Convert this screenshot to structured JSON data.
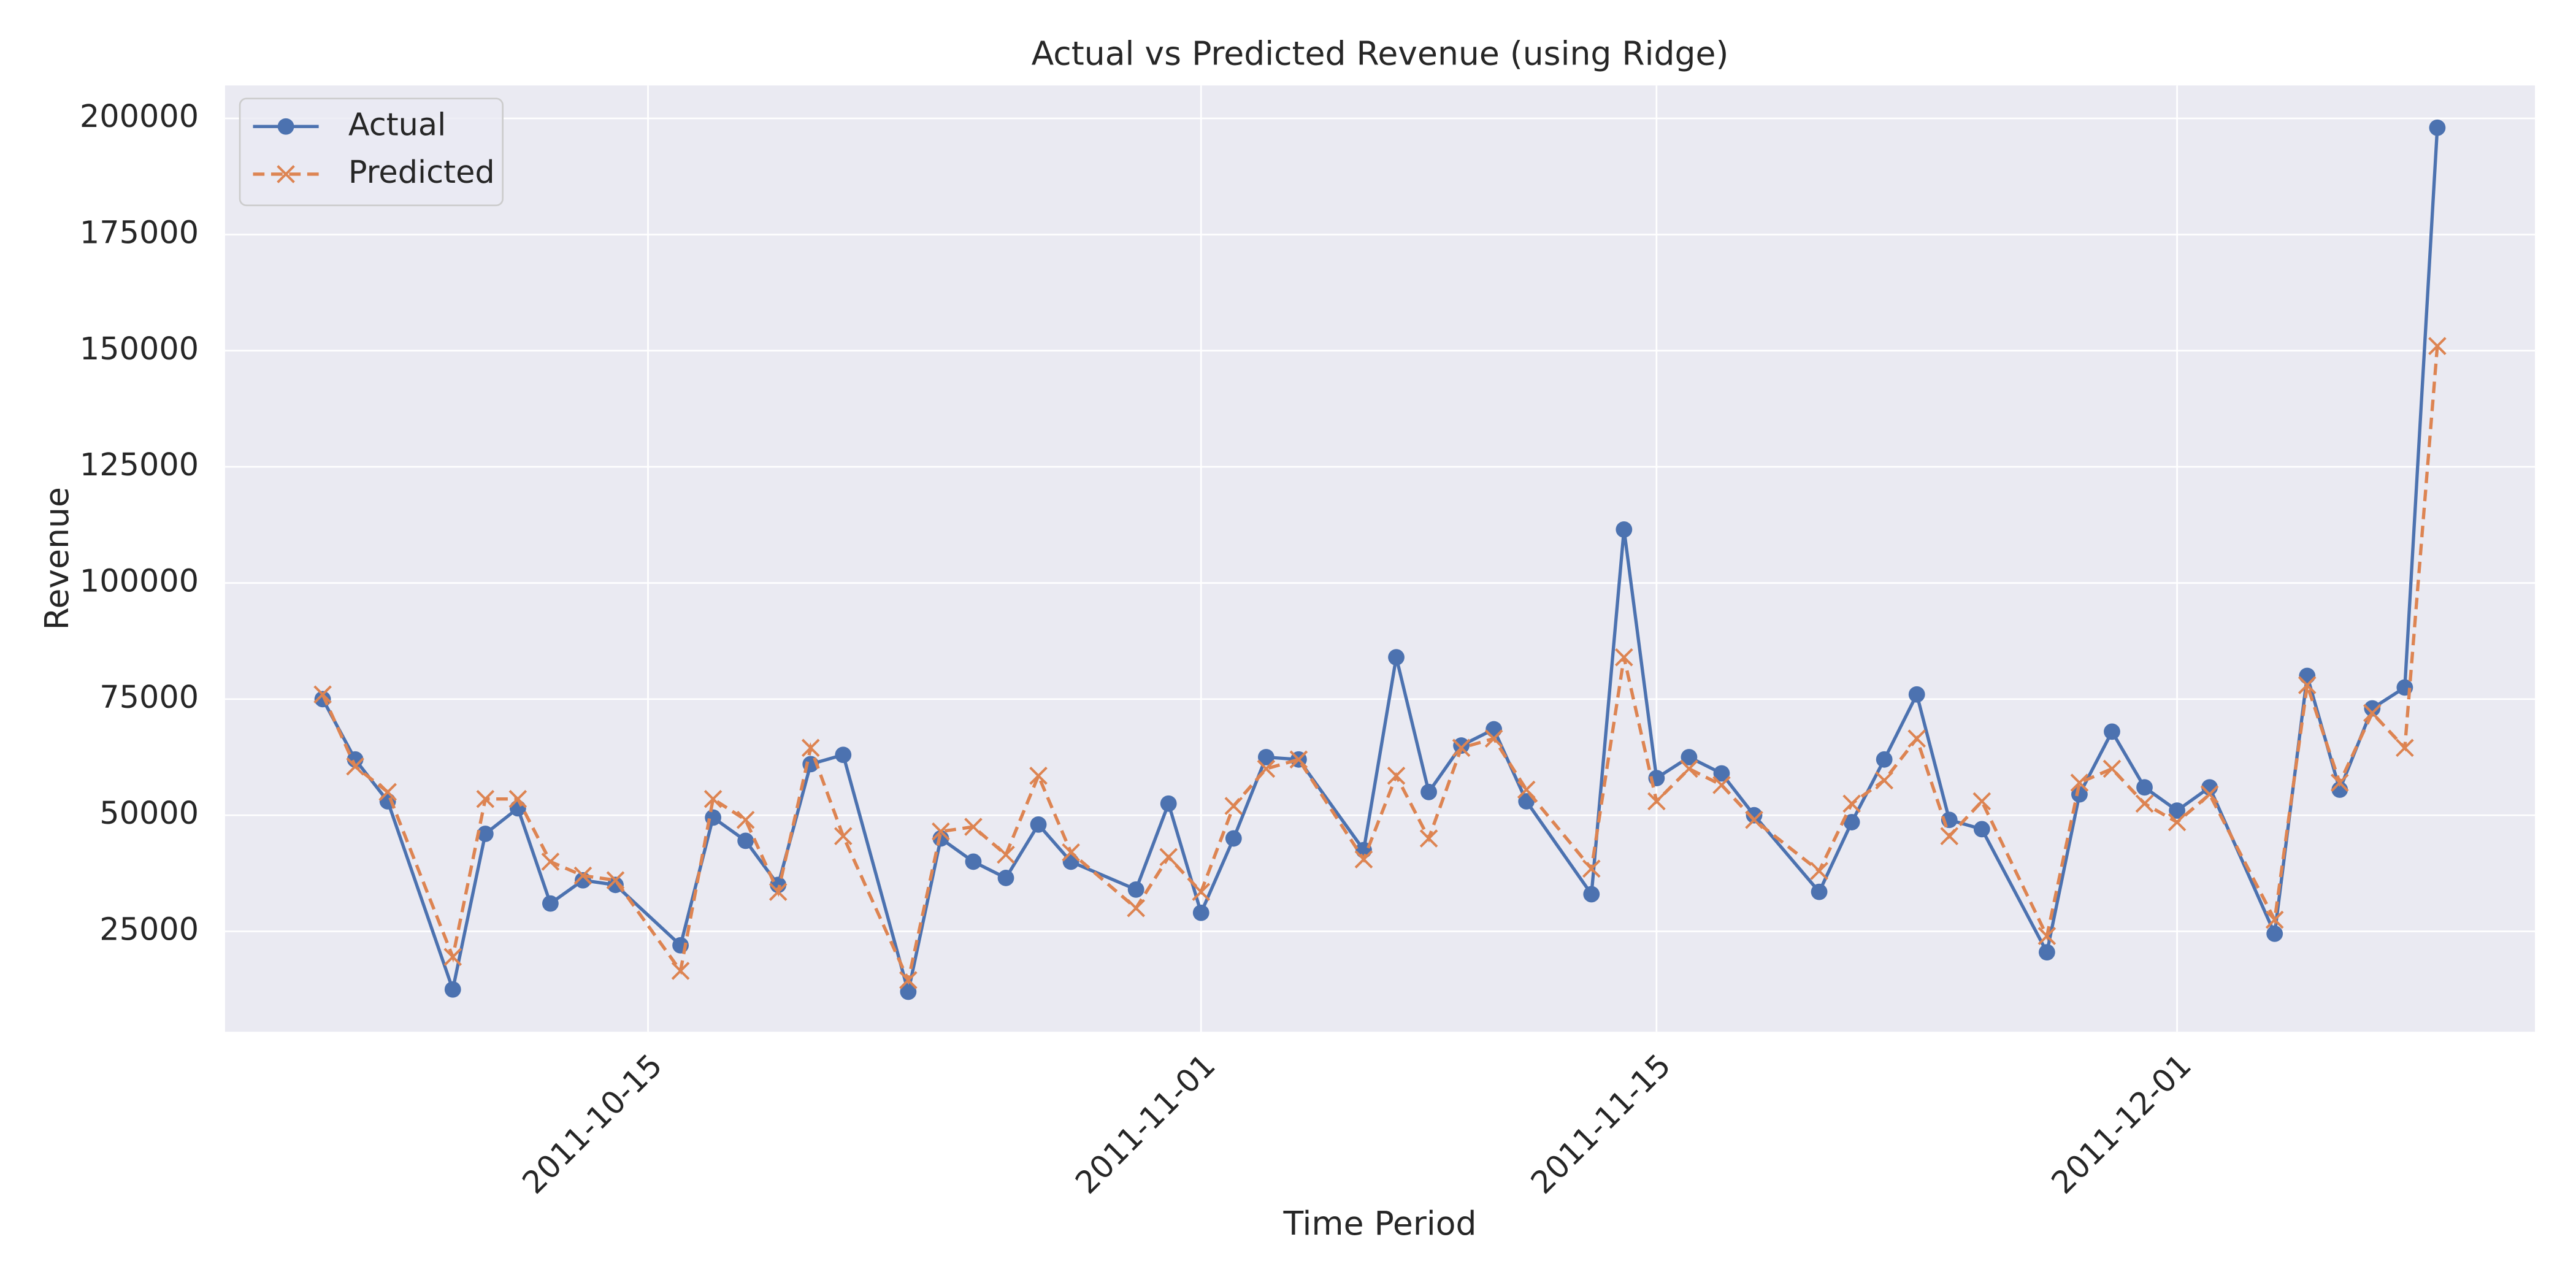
{
  "chart_data": {
    "type": "line",
    "title": "Actual vs Predicted Revenue (using Ridge)",
    "x_label": "Time Period",
    "y_label": "Revenue",
    "x": [
      "2011-10-05",
      "2011-10-06",
      "2011-10-07",
      "2011-10-09",
      "2011-10-10",
      "2011-10-11",
      "2011-10-12",
      "2011-10-13",
      "2011-10-14",
      "2011-10-16",
      "2011-10-17",
      "2011-10-18",
      "2011-10-19",
      "2011-10-20",
      "2011-10-21",
      "2011-10-23",
      "2011-10-24",
      "2011-10-25",
      "2011-10-26",
      "2011-10-27",
      "2011-10-28",
      "2011-10-30",
      "2011-10-31",
      "2011-11-01",
      "2011-11-02",
      "2011-11-03",
      "2011-11-04",
      "2011-11-06",
      "2011-11-07",
      "2011-11-08",
      "2011-11-09",
      "2011-11-10",
      "2011-11-11",
      "2011-11-13",
      "2011-11-14",
      "2011-11-15",
      "2011-11-16",
      "2011-11-17",
      "2011-11-18",
      "2011-11-20",
      "2011-11-21",
      "2011-11-22",
      "2011-11-23",
      "2011-11-24",
      "2011-11-25",
      "2011-11-27",
      "2011-11-28",
      "2011-11-29",
      "2011-11-30",
      "2011-12-01",
      "2011-12-02",
      "2011-12-04",
      "2011-12-05",
      "2011-12-06",
      "2011-12-07",
      "2011-12-08",
      "2011-12-09"
    ],
    "series": [
      {
        "name": "Actual",
        "color": "#4c72b0",
        "marker": "circle",
        "dash": "solid",
        "values": [
          75000,
          62000,
          53000,
          12500,
          46000,
          51500,
          31000,
          36000,
          35000,
          22000,
          49500,
          44500,
          35000,
          61000,
          63000,
          12000,
          45000,
          40000,
          36500,
          48000,
          40000,
          34000,
          52500,
          29000,
          45000,
          62500,
          62000,
          42500,
          84000,
          55000,
          65000,
          68500,
          53000,
          33000,
          111500,
          58000,
          62500,
          59000,
          50000,
          33500,
          48500,
          62000,
          76000,
          49000,
          47000,
          20500,
          54500,
          68000,
          56000,
          51000,
          56000,
          24500,
          80000,
          55500,
          73000,
          77500,
          198000
        ]
      },
      {
        "name": "Predicted",
        "color": "#dd8452",
        "marker": "x",
        "dash": "dashed",
        "values": [
          76000,
          60500,
          55000,
          19500,
          53500,
          53500,
          40000,
          37000,
          36000,
          16500,
          53500,
          49000,
          33500,
          64500,
          45500,
          14500,
          46500,
          47500,
          41500,
          58500,
          42000,
          30000,
          41000,
          33500,
          52000,
          60000,
          62000,
          40500,
          58500,
          45000,
          64500,
          66500,
          55500,
          38500,
          84000,
          53000,
          60000,
          56500,
          49000,
          38000,
          52500,
          57500,
          66500,
          45500,
          53000,
          24000,
          57000,
          60000,
          52500,
          48500,
          54500,
          27500,
          78000,
          57000,
          72000,
          64500,
          151000
        ]
      }
    ],
    "xlim": [
      "2011-10-02",
      "2011-12-12"
    ],
    "xticks": [
      "2011-10-15",
      "2011-11-01",
      "2011-11-15",
      "2011-12-01"
    ],
    "ylim": [
      3400,
      207100
    ],
    "yticks": [
      25000,
      50000,
      75000,
      100000,
      125000,
      150000,
      175000,
      200000
    ],
    "grid": true,
    "legend": "upper left"
  }
}
